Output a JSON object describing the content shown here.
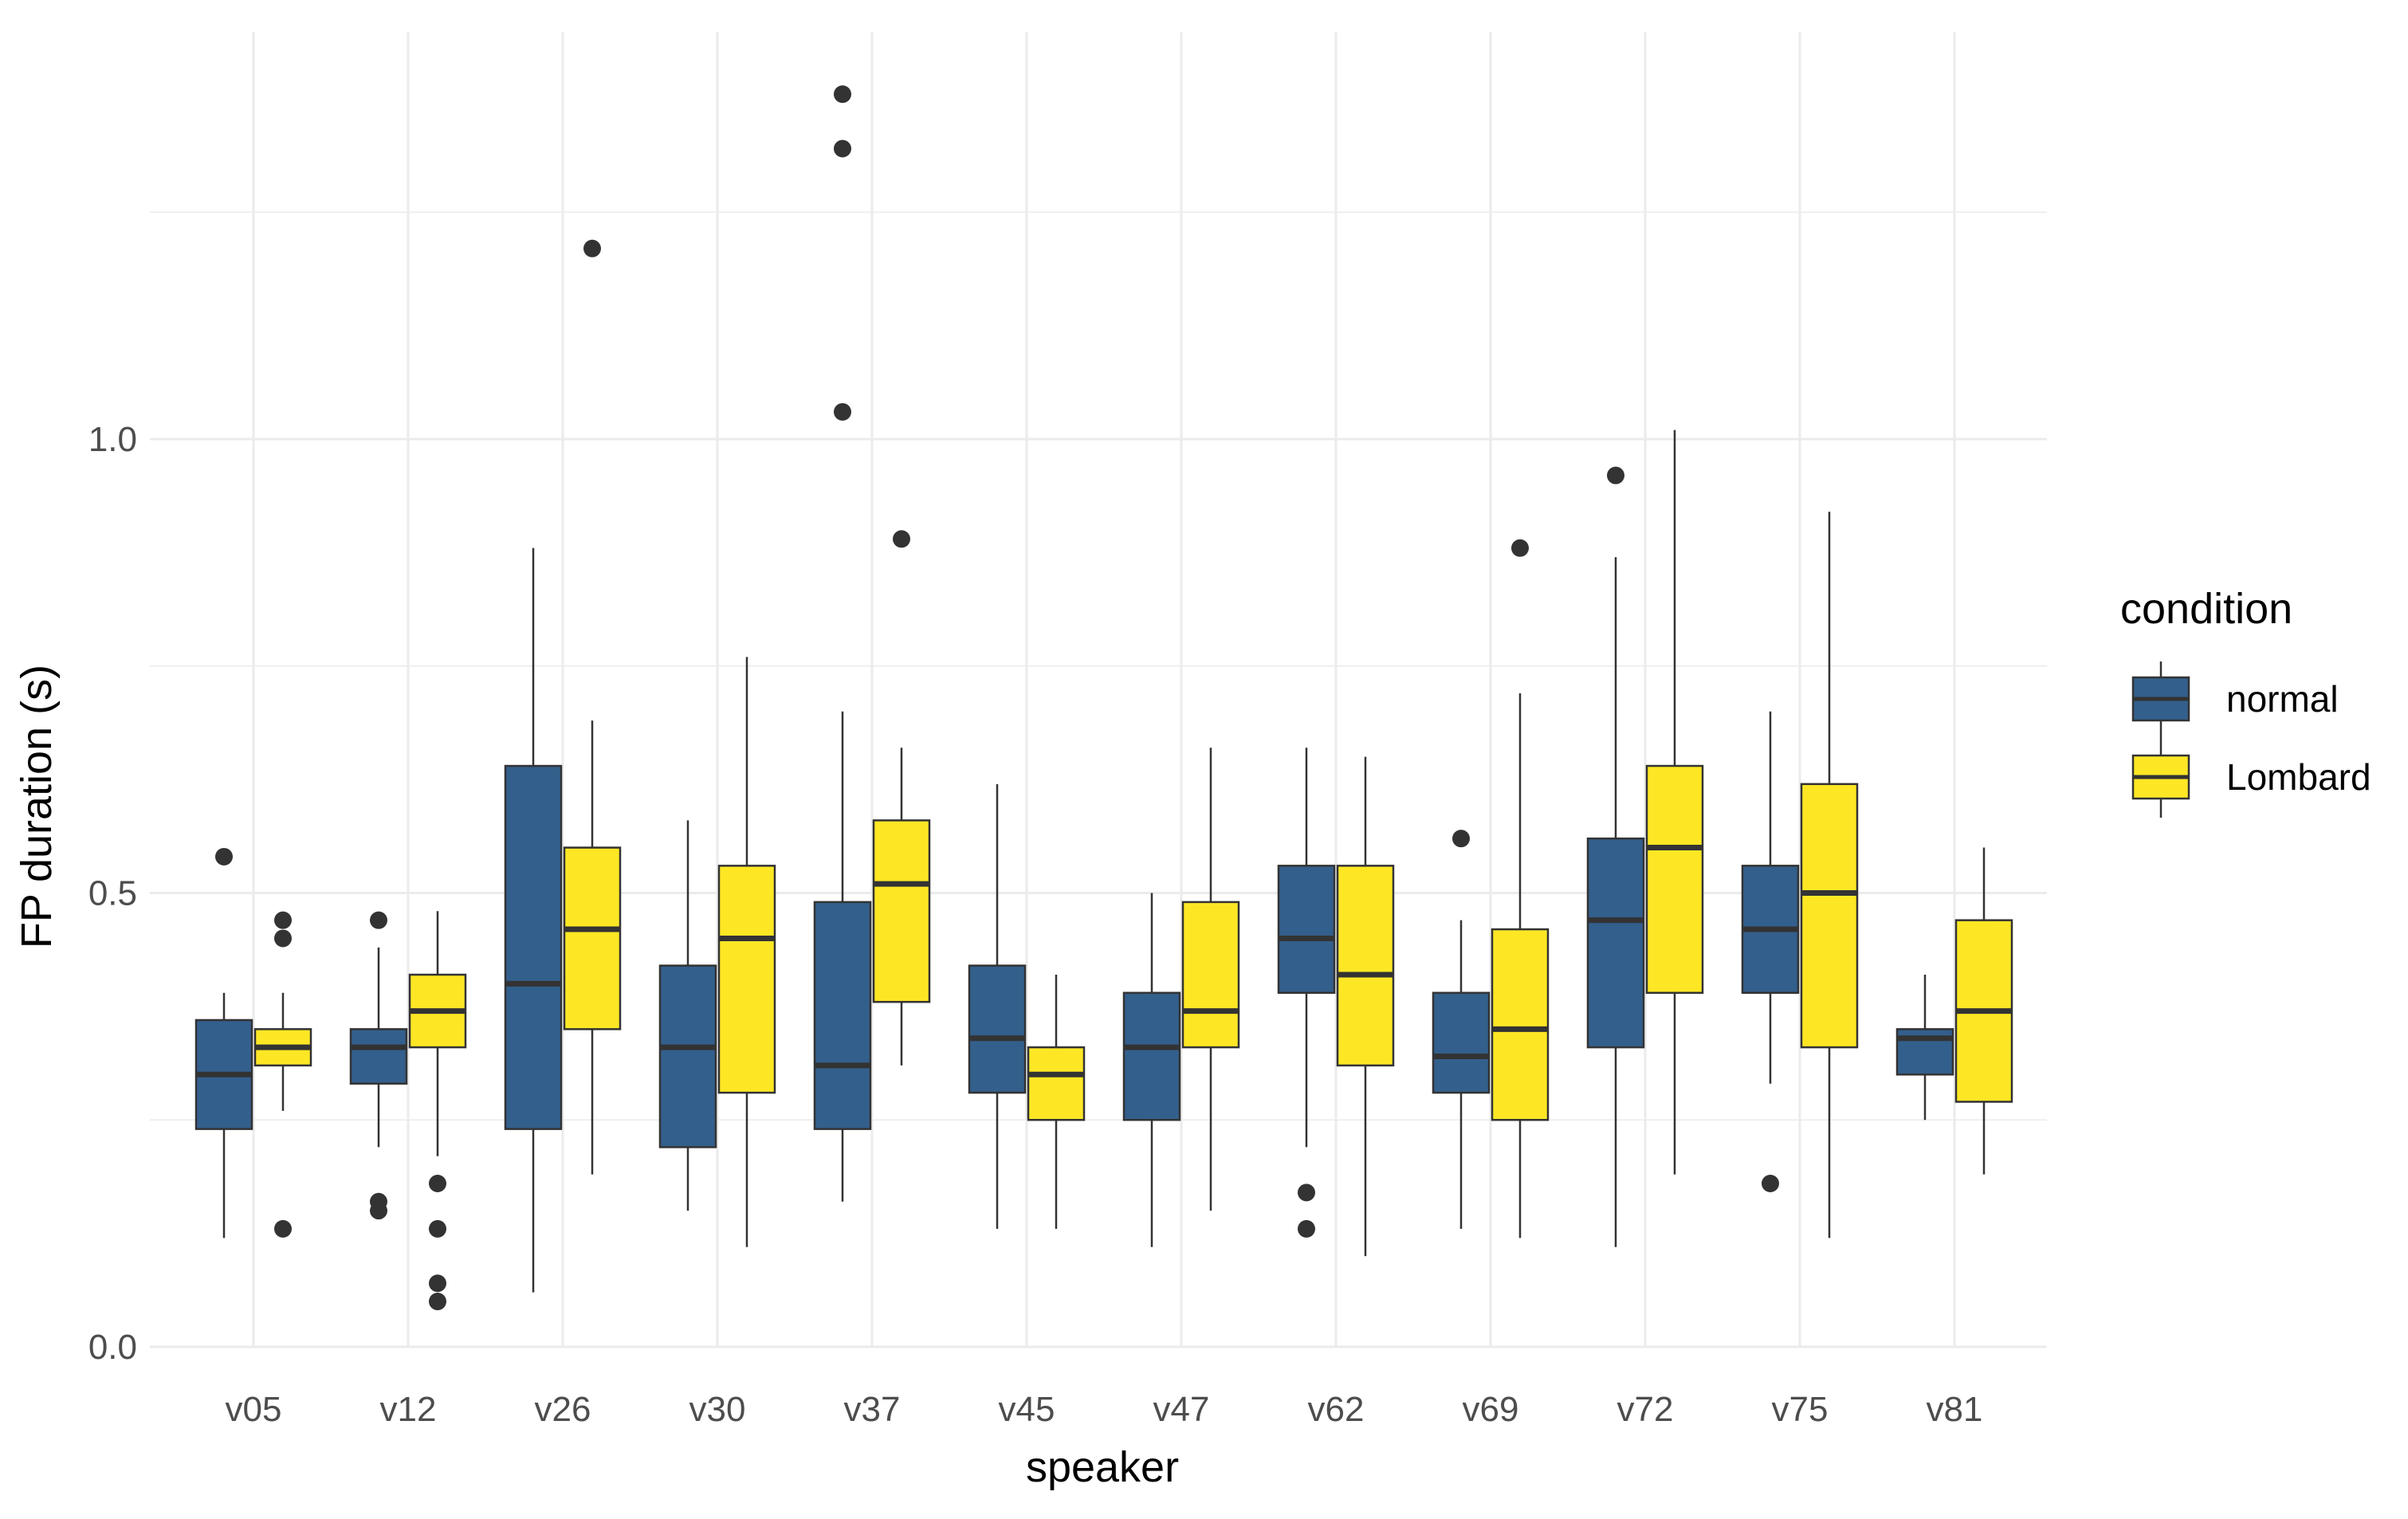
{
  "chart_data": {
    "type": "boxplot",
    "xlabel": "speaker",
    "ylabel": "FP duration (s)",
    "ylim": [
      0,
      1.4
    ],
    "y_ticks": [
      0.0,
      0.5,
      1.0
    ],
    "y_tick_labels": [
      "0.0",
      "0.5",
      "1.0"
    ],
    "grid": true,
    "categories": [
      "v05",
      "v12",
      "v26",
      "v30",
      "v37",
      "v45",
      "v47",
      "v62",
      "v69",
      "v72",
      "v75",
      "v81"
    ],
    "legend": {
      "title": "condition",
      "position": "right",
      "entries": [
        {
          "name": "normal",
          "color": "#335f8c"
        },
        {
          "name": "Lombard",
          "color": "#fde725"
        }
      ]
    },
    "series": [
      {
        "name": "normal",
        "color": "#335f8c",
        "boxes": [
          {
            "whisker_low": 0.12,
            "q1": 0.24,
            "median": 0.3,
            "q3": 0.36,
            "whisker_high": 0.39,
            "outliers": [
              0.54
            ]
          },
          {
            "whisker_low": 0.22,
            "q1": 0.29,
            "median": 0.33,
            "q3": 0.35,
            "whisker_high": 0.44,
            "outliers": [
              0.47,
              0.16,
              0.15
            ]
          },
          {
            "whisker_low": 0.06,
            "q1": 0.24,
            "median": 0.4,
            "q3": 0.64,
            "whisker_high": 0.88,
            "outliers": []
          },
          {
            "whisker_low": 0.15,
            "q1": 0.22,
            "median": 0.33,
            "q3": 0.42,
            "whisker_high": 0.58,
            "outliers": []
          },
          {
            "whisker_low": 0.16,
            "q1": 0.24,
            "median": 0.31,
            "q3": 0.49,
            "whisker_high": 0.7,
            "outliers": [
              1.38,
              1.32,
              1.03
            ]
          },
          {
            "whisker_low": 0.13,
            "q1": 0.28,
            "median": 0.34,
            "q3": 0.42,
            "whisker_high": 0.62,
            "outliers": []
          },
          {
            "whisker_low": 0.11,
            "q1": 0.25,
            "median": 0.33,
            "q3": 0.39,
            "whisker_high": 0.5,
            "outliers": []
          },
          {
            "whisker_low": 0.22,
            "q1": 0.39,
            "median": 0.45,
            "q3": 0.53,
            "whisker_high": 0.66,
            "outliers": [
              0.17,
              0.13
            ]
          },
          {
            "whisker_low": 0.13,
            "q1": 0.28,
            "median": 0.32,
            "q3": 0.39,
            "whisker_high": 0.47,
            "outliers": [
              0.56
            ]
          },
          {
            "whisker_low": 0.11,
            "q1": 0.33,
            "median": 0.47,
            "q3": 0.56,
            "whisker_high": 0.87,
            "outliers": [
              0.96
            ]
          },
          {
            "whisker_low": 0.29,
            "q1": 0.39,
            "median": 0.46,
            "q3": 0.53,
            "whisker_high": 0.7,
            "outliers": [
              0.18
            ]
          },
          {
            "whisker_low": 0.25,
            "q1": 0.3,
            "median": 0.34,
            "q3": 0.35,
            "whisker_high": 0.41,
            "outliers": []
          }
        ]
      },
      {
        "name": "Lombard",
        "color": "#fde725",
        "boxes": [
          {
            "whisker_low": 0.26,
            "q1": 0.31,
            "median": 0.33,
            "q3": 0.35,
            "whisker_high": 0.39,
            "outliers": [
              0.47,
              0.45,
              0.13
            ]
          },
          {
            "whisker_low": 0.21,
            "q1": 0.33,
            "median": 0.37,
            "q3": 0.41,
            "whisker_high": 0.48,
            "outliers": [
              0.18,
              0.13,
              0.07,
              0.05
            ]
          },
          {
            "whisker_low": 0.19,
            "q1": 0.35,
            "median": 0.46,
            "q3": 0.55,
            "whisker_high": 0.69,
            "outliers": [
              1.21
            ]
          },
          {
            "whisker_low": 0.11,
            "q1": 0.28,
            "median": 0.45,
            "q3": 0.53,
            "whisker_high": 0.76,
            "outliers": []
          },
          {
            "whisker_low": 0.31,
            "q1": 0.38,
            "median": 0.51,
            "q3": 0.58,
            "whisker_high": 0.66,
            "outliers": [
              0.89
            ]
          },
          {
            "whisker_low": 0.13,
            "q1": 0.25,
            "median": 0.3,
            "q3": 0.33,
            "whisker_high": 0.41,
            "outliers": []
          },
          {
            "whisker_low": 0.15,
            "q1": 0.33,
            "median": 0.37,
            "q3": 0.49,
            "whisker_high": 0.66,
            "outliers": []
          },
          {
            "whisker_low": 0.1,
            "q1": 0.31,
            "median": 0.41,
            "q3": 0.53,
            "whisker_high": 0.65,
            "outliers": []
          },
          {
            "whisker_low": 0.12,
            "q1": 0.25,
            "median": 0.35,
            "q3": 0.46,
            "whisker_high": 0.72,
            "outliers": [
              0.88
            ]
          },
          {
            "whisker_low": 0.19,
            "q1": 0.39,
            "median": 0.55,
            "q3": 0.64,
            "whisker_high": 1.01,
            "outliers": []
          },
          {
            "whisker_low": 0.12,
            "q1": 0.33,
            "median": 0.5,
            "q3": 0.62,
            "whisker_high": 0.92,
            "outliers": []
          },
          {
            "whisker_low": 0.19,
            "q1": 0.27,
            "median": 0.37,
            "q3": 0.47,
            "whisker_high": 0.55,
            "outliers": []
          }
        ]
      }
    ]
  }
}
